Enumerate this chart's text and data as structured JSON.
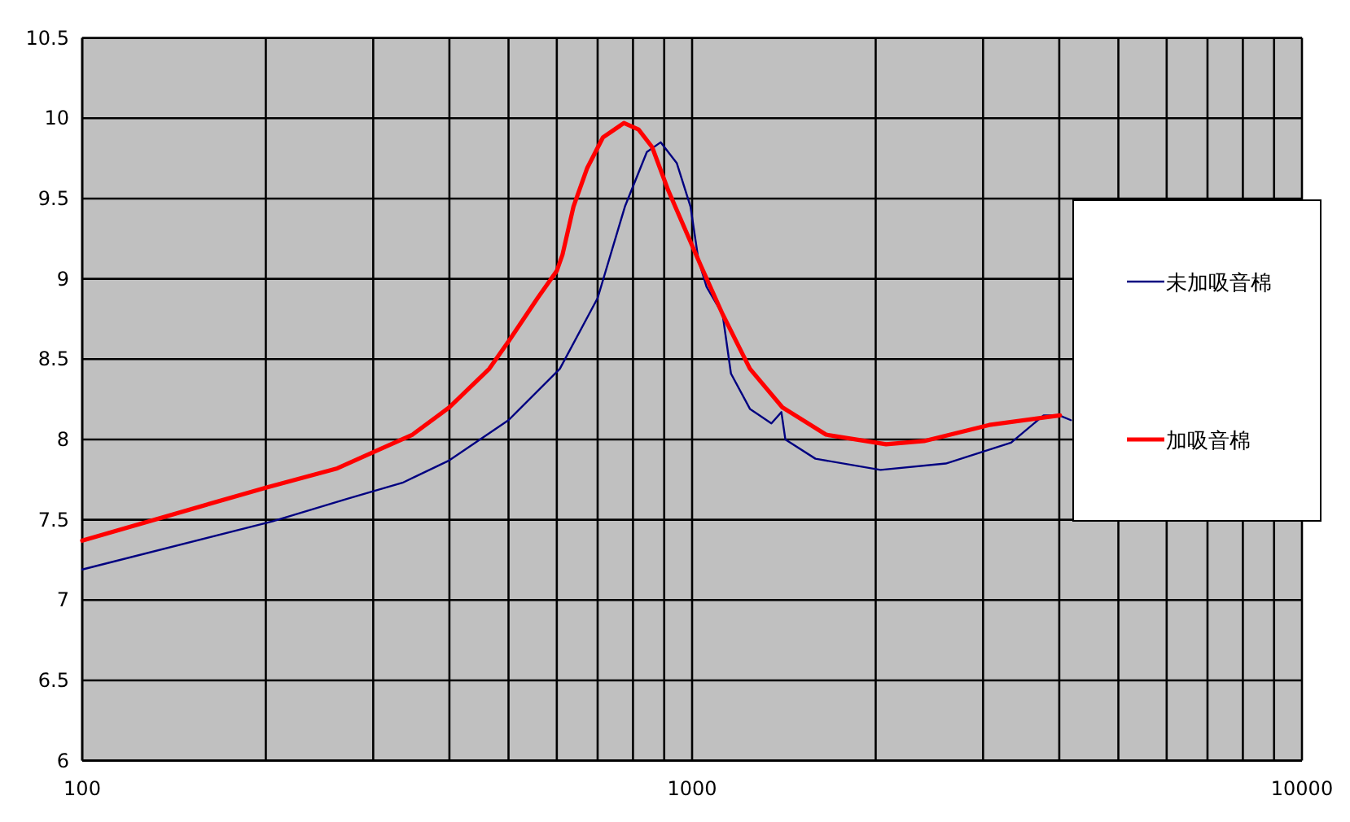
{
  "chart_data": {
    "type": "line",
    "log": "x",
    "grid": true,
    "legend": "right",
    "xlim": [
      100,
      10000
    ],
    "ylim": [
      6,
      10.5
    ],
    "xticks": [
      100,
      {
        "value": 200,
        "label": null
      },
      {
        "value": 300,
        "label": null
      },
      {
        "value": 400,
        "label": null
      },
      {
        "value": 500,
        "label": null
      },
      {
        "value": 600,
        "label": null
      },
      {
        "value": 700,
        "label": null
      },
      {
        "value": 800,
        "label": null
      },
      {
        "value": 900,
        "label": null
      },
      1000,
      {
        "value": 2000,
        "label": null
      },
      {
        "value": 3000,
        "label": null
      },
      {
        "value": 4000,
        "label": null
      },
      {
        "value": 5000,
        "label": null
      },
      {
        "value": 6000,
        "label": null
      },
      {
        "value": 7000,
        "label": null
      },
      {
        "value": 8000,
        "label": null
      },
      {
        "value": 9000,
        "label": null
      },
      10000
    ],
    "yticks": [
      6,
      6.5,
      7,
      7.5,
      8,
      8.5,
      9,
      9.5,
      10,
      10.5
    ],
    "series": [
      {
        "name": "未加吸音棉",
        "color": "#000080",
        "x": [
          100,
          205,
          272,
          335,
          400,
          500,
          607,
          700,
          776,
          843,
          888,
          944,
          994,
          1024,
          1056,
          1122,
          1158,
          1244,
          1349,
          1401,
          1422,
          1593,
          2037,
          2606,
          3335,
          3770,
          4000,
          4180
        ],
        "values": [
          7.19,
          7.49,
          7.63,
          7.73,
          7.87,
          8.12,
          8.44,
          8.88,
          9.45,
          9.79,
          9.85,
          9.72,
          9.45,
          9.12,
          8.95,
          8.78,
          8.41,
          8.19,
          8.1,
          8.17,
          8.0,
          7.88,
          7.81,
          7.85,
          7.98,
          8.15,
          8.15,
          8.12
        ]
      },
      {
        "name": "加吸音棉",
        "color": "#ff0000",
        "x": [
          100,
          200,
          262,
          300,
          348,
          400,
          465,
          500,
          558,
          600,
          613,
          639,
          673,
          714,
          773,
          817,
          860,
          914,
          1034,
          1122,
          1244,
          1406,
          1658,
          2080,
          2400,
          3070,
          4010
        ],
        "values": [
          7.37,
          7.7,
          7.82,
          7.92,
          8.03,
          8.2,
          8.44,
          8.61,
          8.88,
          9.05,
          9.15,
          9.45,
          9.69,
          9.88,
          9.97,
          9.93,
          9.82,
          9.55,
          9.08,
          8.78,
          8.44,
          8.2,
          8.03,
          7.97,
          7.99,
          8.09,
          8.15
        ]
      }
    ]
  }
}
